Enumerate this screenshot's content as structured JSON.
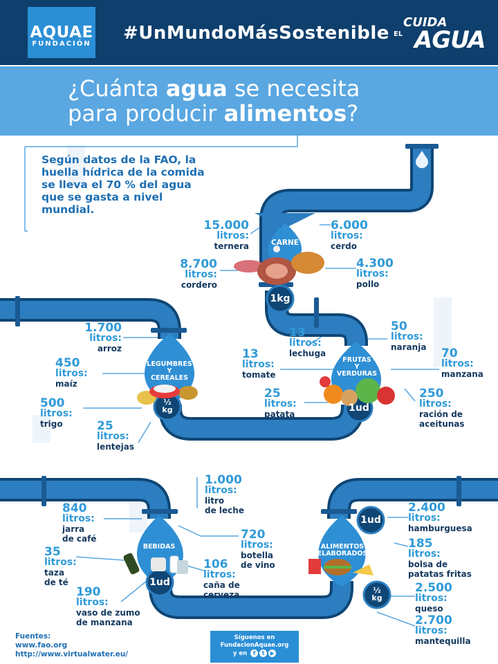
{
  "header": {
    "logo_line1": "AQUAE",
    "logo_line2": "FUNDACIÓN",
    "hashtag": "#UnMundoMásSostenible",
    "campaign_el": "EL",
    "campaign_line1": "CUIDA",
    "campaign_line2": "AGUA"
  },
  "title": {
    "pre1": "¿Cuánta ",
    "bold1": "agua",
    "mid1": " se necesita",
    "pre2": "para producir ",
    "bold2": "alimentos",
    "post2": "?"
  },
  "intro": "Según datos de la FAO, la huella hídrica de la comida se lleva el 70 % del agua que se gasta a nivel mundial.",
  "units": {
    "kg": "1kg",
    "half_a": "½",
    "half_b": "kg",
    "ud": "1ud"
  },
  "carne": {
    "label": "CARNE",
    "items": [
      {
        "value": "15.000",
        "unit": "litros:",
        "name": "ternera"
      },
      {
        "value": "6.000",
        "unit": "litros:",
        "name": "cerdo"
      },
      {
        "value": "8.700",
        "unit": "litros:",
        "name": "cordero"
      },
      {
        "value": "4.300",
        "unit": "litros:",
        "name": "pollo"
      }
    ]
  },
  "legumbres": {
    "label1": "LEGUMBRES",
    "label2": "Y",
    "label3": "CEREALES",
    "items": [
      {
        "value": "1.700",
        "unit": "litros:",
        "name": "arroz"
      },
      {
        "value": "450",
        "unit": "litros:",
        "name": "maíz"
      },
      {
        "value": "500",
        "unit": "litros:",
        "name": "trigo"
      },
      {
        "value": "25",
        "unit": "litros:",
        "name": "lentejas"
      }
    ]
  },
  "frutas": {
    "label1": "FRUTAS",
    "label2": "Y",
    "label3": "VERDURAS",
    "items": [
      {
        "value": "13",
        "unit": "litros:",
        "name": "lechuga"
      },
      {
        "value": "50",
        "unit": "litros:",
        "name": "naranja"
      },
      {
        "value": "13",
        "unit": "litros:",
        "name": "tomate"
      },
      {
        "value": "70",
        "unit": "litros:",
        "name": "manzana"
      },
      {
        "value": "25",
        "unit": "litros:",
        "name": "patata"
      },
      {
        "value": "250",
        "unit": "litros:",
        "name1": "ración de",
        "name2": "aceitunas"
      }
    ]
  },
  "bebidas": {
    "label": "BEBIDAS",
    "items": [
      {
        "value": "1.000",
        "unit": "litros:",
        "name1": "litro",
        "name2": "de leche"
      },
      {
        "value": "840",
        "unit": "litros:",
        "name1": "jarra",
        "name2": "de café"
      },
      {
        "value": "720",
        "unit": "litros:",
        "name1": "botella",
        "name2": "de vino"
      },
      {
        "value": "35",
        "unit": "litros:",
        "name1": "taza",
        "name2": "de té"
      },
      {
        "value": "106",
        "unit": "litros:",
        "name1": "caña de",
        "name2": "cerveza"
      },
      {
        "value": "190",
        "unit": "litros:",
        "name1": "vaso de zumo",
        "name2": "de manzana"
      }
    ]
  },
  "elaborados": {
    "label1": "ALIMENTOS",
    "label2": "ELABORADOS",
    "items": [
      {
        "value": "2.400",
        "unit": "litros:",
        "name": "hamburguesa"
      },
      {
        "value": "185",
        "unit": "litros:",
        "name1": "bolsa de",
        "name2": "patatas fritas"
      },
      {
        "value": "2.500",
        "unit": "litros:",
        "name": "queso"
      },
      {
        "value": "2.700",
        "unit": "litros:",
        "name": "mantequilla"
      }
    ]
  },
  "footer": {
    "sources_title": "Fuentes:",
    "source1": "www.fao.org",
    "source2": "http://www.virtualwater.eu/",
    "follow1": "Síguenos en",
    "follow2": "FundacionAquae.org",
    "follow3": "y en"
  },
  "colors": {
    "navy": "#0e3f6d",
    "title_blue": "#5aa7e1",
    "pipe": "#2c7ec0",
    "pipe_dark": "#0f4675",
    "text_blue": "#2f9ad8",
    "text_dark": "#14395f"
  }
}
